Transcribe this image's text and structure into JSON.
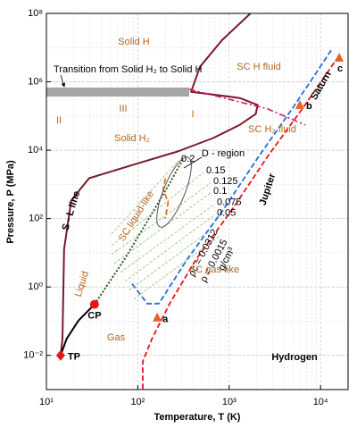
{
  "chart_data": {
    "type": "line",
    "xlabel": "Temperature, T (K)",
    "ylabel": "Pressure, P (MPa)",
    "xscale": "log",
    "yscale": "log",
    "xlim": [
      10,
      20000
    ],
    "ylim": [
      0.001,
      100000000
    ],
    "xticks": [
      {
        "value": 10,
        "label": "10¹"
      },
      {
        "value": 100,
        "label": "10²"
      },
      {
        "value": 1000,
        "label": "10³"
      },
      {
        "value": 10000,
        "label": "10⁴"
      }
    ],
    "yticks": [
      {
        "value": 0.01,
        "label": "10⁻²"
      },
      {
        "value": 1,
        "label": "10⁰"
      },
      {
        "value": 100,
        "label": "10²"
      },
      {
        "value": 10000,
        "label": "10⁴"
      },
      {
        "value": 1000000,
        "label": "10⁶"
      },
      {
        "value": 100000000,
        "label": "10⁸"
      }
    ],
    "grid": true,
    "transition_band": {
      "x": [
        10,
        365
      ],
      "y": [
        370000,
        680000
      ],
      "color": "#a6a6a6"
    },
    "series": [
      {
        "name": "S - L line",
        "color": "#7b1a2a",
        "style": "solid",
        "x": [
          14.3,
          15,
          15.6,
          18.7,
          29.3,
          89,
          273,
          668,
          1310,
          1950,
          2050,
          1310,
          383,
          479,
          836,
          1710
        ],
        "values": [
          0.01,
          0.03,
          12.6,
          340,
          1510,
          3740,
          9200,
          22600,
          55600,
          114000,
          208000,
          336000,
          511000,
          2750000,
          16500000,
          100000000
        ]
      },
      {
        "color": "#000000",
        "style": "solid",
        "x": [
          14.3,
          16.7,
          22.4,
          33.6
        ],
        "values": [
          0.01,
          0.031,
          0.104,
          0.31
        ]
      },
      {
        "name": "Jupiter",
        "color": "#e8141a",
        "style": "dashed",
        "x": [
          113.4,
          113.4,
          142,
          223,
          437,
          1070,
          2640,
          6500,
          16000
        ],
        "values": [
          0.00105,
          0.0066,
          0.0295,
          0.327,
          6.6,
          180,
          6640,
          181000,
          5900000
        ]
      },
      {
        "name": "Saturn",
        "color": "#1f6fe0",
        "style": "dashed",
        "x": [
          86.6,
          127,
          170,
          349,
          859,
          2110,
          5190,
          13300
        ],
        "values": [
          1.23,
          0.327,
          0.327,
          6.6,
          180,
          6640,
          205000,
          9000000
        ]
      },
      {
        "color": "#d4147a",
        "style": "dashdot",
        "x": [
          365,
          1070,
          2640,
          6790
        ],
        "values": [
          604000,
          293000,
          161000,
          54500
        ]
      },
      {
        "color": "#2d5a1b",
        "style": "dotted",
        "x": [
          33.6,
          72,
          141,
          224,
          312
        ],
        "values": [
          0.31,
          6.6,
          133,
          1100,
          5500
        ]
      },
      {
        "color": "#e86a1a",
        "style": "dashed",
        "x": [
          200,
          190,
          215,
          200
        ],
        "values": [
          1500,
          700,
          300,
          100
        ]
      },
      {
        "name": "0.2",
        "color": "#8fbf6a",
        "style": "thin",
        "x": [
          51.6,
          279
        ],
        "values": [
          35.6,
          4920
        ]
      },
      {
        "name": "0.15",
        "color": "#8fbf6a",
        "style": "thin",
        "x": [
          51.6,
          524
        ],
        "values": [
          16.3,
          2250
        ]
      },
      {
        "name": "0.125",
        "color": "#8fbf6a",
        "style": "thin",
        "x": [
          51.6,
          627
        ],
        "values": [
          8.9,
          1090
        ]
      },
      {
        "name": "0.1",
        "color": "#8fbf6a",
        "style": "thin",
        "x": [
          55.2,
          627
        ],
        "values": [
          4.9,
          565
        ]
      },
      {
        "name": "0.075",
        "color": "#8fbf6a",
        "style": "thin",
        "x": [
          64.7,
          685
        ],
        "values": [
          2.68,
          259
        ]
      },
      {
        "name": "0.05",
        "color": "#8fbf6a",
        "style": "thin",
        "x": [
          72.3,
          685
        ],
        "values": [
          1.47,
          126
        ]
      },
      {
        "name": "ρc = 0.0312",
        "color": "#8fbf6a",
        "style": "thin",
        "x": [
          80.9,
          547
        ],
        "values": [
          0.81,
          35.6
        ]
      },
      {
        "name": "ρ = 0.0015",
        "color": "#8fbf6a",
        "style": "thin",
        "x": [
          90.6,
          767
        ],
        "values": [
          0.44,
          29.7
        ]
      }
    ],
    "points": [
      {
        "label": "TP",
        "x": 14.3,
        "y": 0.01,
        "shape": "diamond",
        "color": "#e8141a"
      },
      {
        "label": "CP",
        "x": 33.6,
        "y": 0.31,
        "shape": "circle",
        "color": "#e8141a"
      },
      {
        "label": "a",
        "x": 163,
        "y": 0.125,
        "shape": "triangle",
        "color": "#e8602a"
      },
      {
        "label": "b",
        "x": 5930,
        "y": 205000,
        "shape": "triangle",
        "color": "#e8602a"
      },
      {
        "label": "c",
        "x": 16000,
        "y": 4950000,
        "shape": "triangle",
        "color": "#e8602a"
      }
    ],
    "annotations": [
      "Solid H",
      "SC H fluid",
      "Transition from Solid H₂ to Solid H",
      "II",
      "III",
      "I",
      "Solid H₂",
      "SC H₂ fluid",
      "D - region",
      "SC liquid-like",
      "Liquid",
      "Gas",
      "SC gas-like",
      "Hydrogen",
      "g/cm³"
    ]
  }
}
